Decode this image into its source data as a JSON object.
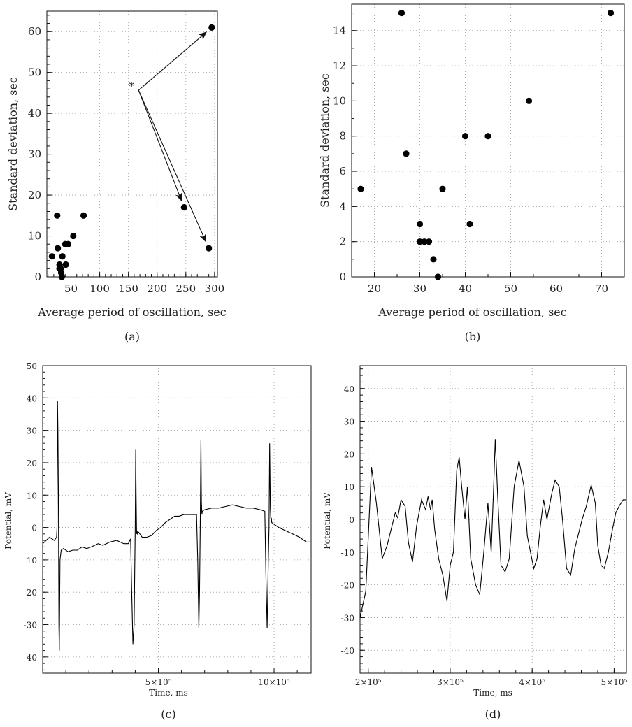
{
  "chart_data": [
    {
      "id": "a",
      "type": "scatter",
      "caption": "(a)",
      "xlabel": "Average period of oscillation, sec",
      "ylabel": "Standard deviation, sec",
      "xlim": [
        8,
        305
      ],
      "ylim": [
        0,
        65
      ],
      "xticks": [
        50,
        100,
        150,
        200,
        250,
        300
      ],
      "yticks": [
        0,
        10,
        20,
        30,
        40,
        50,
        60
      ],
      "grid": true,
      "annotation": {
        "text": "*",
        "at": [
          158,
          46
        ],
        "targets": [
          [
            295,
            61
          ],
          [
            247,
            17
          ],
          [
            290,
            7
          ]
        ]
      },
      "points": [
        [
          17,
          5
        ],
        [
          26,
          15
        ],
        [
          27,
          7
        ],
        [
          30,
          3
        ],
        [
          30,
          2
        ],
        [
          31,
          2
        ],
        [
          32,
          2
        ],
        [
          33,
          1
        ],
        [
          34,
          0
        ],
        [
          35,
          5
        ],
        [
          40,
          8
        ],
        [
          41,
          3
        ],
        [
          45,
          8
        ],
        [
          54,
          10
        ],
        [
          72,
          15
        ],
        [
          247,
          17
        ],
        [
          290,
          7
        ],
        [
          295,
          61
        ]
      ]
    },
    {
      "id": "b",
      "type": "scatter",
      "caption": "(b)",
      "xlabel": "Average period of oscillation, sec",
      "ylabel": "Standard deviation, sec",
      "xlim": [
        15,
        75
      ],
      "ylim": [
        0,
        15.5
      ],
      "xticks": [
        20,
        30,
        40,
        50,
        60,
        70
      ],
      "yticks": [
        0,
        2,
        4,
        6,
        8,
        10,
        12,
        14
      ],
      "grid": true,
      "points": [
        [
          17,
          5
        ],
        [
          26,
          15
        ],
        [
          27,
          7
        ],
        [
          30,
          3
        ],
        [
          30,
          2
        ],
        [
          31,
          2
        ],
        [
          32,
          2
        ],
        [
          33,
          1
        ],
        [
          34,
          0
        ],
        [
          35,
          5
        ],
        [
          40,
          8
        ],
        [
          41,
          3
        ],
        [
          45,
          8
        ],
        [
          54,
          10
        ],
        [
          72,
          15
        ]
      ]
    },
    {
      "id": "c",
      "type": "line",
      "caption": "(c)",
      "xlabel": "Time, ms",
      "ylabel": "Potential, mV",
      "xlim": [
        0,
        1160000
      ],
      "ylim": [
        -45,
        50
      ],
      "xticks": [
        500000,
        1000000
      ],
      "xticklabels": [
        "5×10⁵",
        "10×10⁵"
      ],
      "yticks": [
        -40,
        -30,
        -20,
        -10,
        0,
        10,
        20,
        30,
        40,
        50
      ],
      "grid": true,
      "x": [
        0,
        30000,
        50000,
        60000,
        62000,
        64000,
        66000,
        68000,
        70000,
        72000,
        75000,
        80000,
        90000,
        110000,
        130000,
        150000,
        170000,
        190000,
        210000,
        240000,
        260000,
        290000,
        320000,
        350000,
        370000,
        380000,
        385000,
        390000,
        395000,
        400000,
        402000,
        404000,
        406000,
        408000,
        410000,
        415000,
        430000,
        450000,
        470000,
        490000,
        510000,
        530000,
        550000,
        570000,
        590000,
        610000,
        640000,
        665000,
        670000,
        675000,
        678000,
        681000,
        684000,
        686000,
        688000,
        690000,
        700000,
        730000,
        760000,
        790000,
        820000,
        850000,
        880000,
        910000,
        940000,
        960000,
        965000,
        970000,
        975000,
        978000,
        981000,
        984000,
        986000,
        988000,
        990000,
        1000000,
        1020000,
        1050000,
        1080000,
        1110000,
        1140000,
        1160000
      ],
      "y": [
        -5,
        -3,
        -4,
        -3,
        0,
        39,
        30,
        10,
        -30,
        -38,
        -10,
        -7,
        -6.5,
        -7.5,
        -7,
        -7,
        -6,
        -6.5,
        -6,
        -5,
        -5.5,
        -4.5,
        -4,
        -5,
        -5,
        -3.5,
        -20,
        -36,
        -30,
        0,
        24,
        10,
        -2,
        -1,
        -2,
        -1.5,
        -3,
        -3,
        -2.5,
        -1,
        0,
        1.5,
        2.5,
        3.5,
        3.5,
        4,
        4,
        4,
        -10,
        -31,
        -20,
        0,
        27,
        8,
        4,
        5,
        5.5,
        6,
        6,
        6.5,
        7,
        6.5,
        6,
        6,
        5.5,
        5,
        -15,
        -31,
        -10,
        0,
        26,
        6,
        2.5,
        3,
        1.5,
        1,
        0,
        -1,
        -2,
        -3,
        -4.5,
        -4.5
      ]
    },
    {
      "id": "d",
      "type": "line",
      "caption": "(d)",
      "xlabel": "Time, ms",
      "ylabel": "Potential, mV",
      "xlim": [
        190000,
        515000
      ],
      "ylim": [
        -47,
        47
      ],
      "xticks": [
        200000,
        300000,
        400000,
        500000
      ],
      "xticklabels": [
        "2×10⁵",
        "3×10⁵",
        "4×10⁵",
        "5×10⁵"
      ],
      "yticks": [
        -40,
        -30,
        -20,
        -10,
        0,
        10,
        20,
        30,
        40
      ],
      "grid": true,
      "x": [
        190000,
        197000,
        204000,
        210000,
        217000,
        223000,
        229000,
        233000,
        236000,
        240000,
        245000,
        249000,
        254000,
        259000,
        265000,
        270000,
        273000,
        276000,
        278000,
        281000,
        286000,
        291000,
        296000,
        300000,
        304000,
        308000,
        311000,
        314000,
        318000,
        321000,
        325000,
        331000,
        336000,
        341000,
        346000,
        350000,
        353000,
        355000,
        358000,
        362000,
        367000,
        372000,
        378000,
        384000,
        390000,
        394000,
        398000,
        402000,
        406000,
        410000,
        414000,
        418000,
        421000,
        424000,
        428000,
        433000,
        437000,
        442000,
        447000,
        452000,
        456000,
        461000,
        466000,
        472000,
        477000,
        480000,
        484000,
        488000,
        493000,
        498000,
        502000,
        506000,
        511000,
        515000
      ],
      "y": [
        -30,
        -22,
        16,
        5,
        -12,
        -8,
        -2,
        2,
        0.5,
        6,
        4,
        -7,
        -13,
        -2,
        6,
        3,
        7,
        3,
        6,
        -3,
        -12,
        -17,
        -25,
        -14,
        -10,
        15,
        19,
        10,
        0,
        10,
        -12,
        -20,
        -23,
        -10,
        5,
        -10,
        10,
        24.5,
        7,
        -14,
        -16,
        -12,
        10,
        18,
        10,
        -5,
        -10,
        -15,
        -12,
        -2,
        6,
        0,
        4,
        8,
        12,
        10,
        0,
        -15,
        -17,
        -9,
        -5,
        0,
        4,
        10.5,
        5,
        -8,
        -14,
        -15,
        -10,
        -3,
        2,
        4,
        6,
        6
      ]
    }
  ]
}
